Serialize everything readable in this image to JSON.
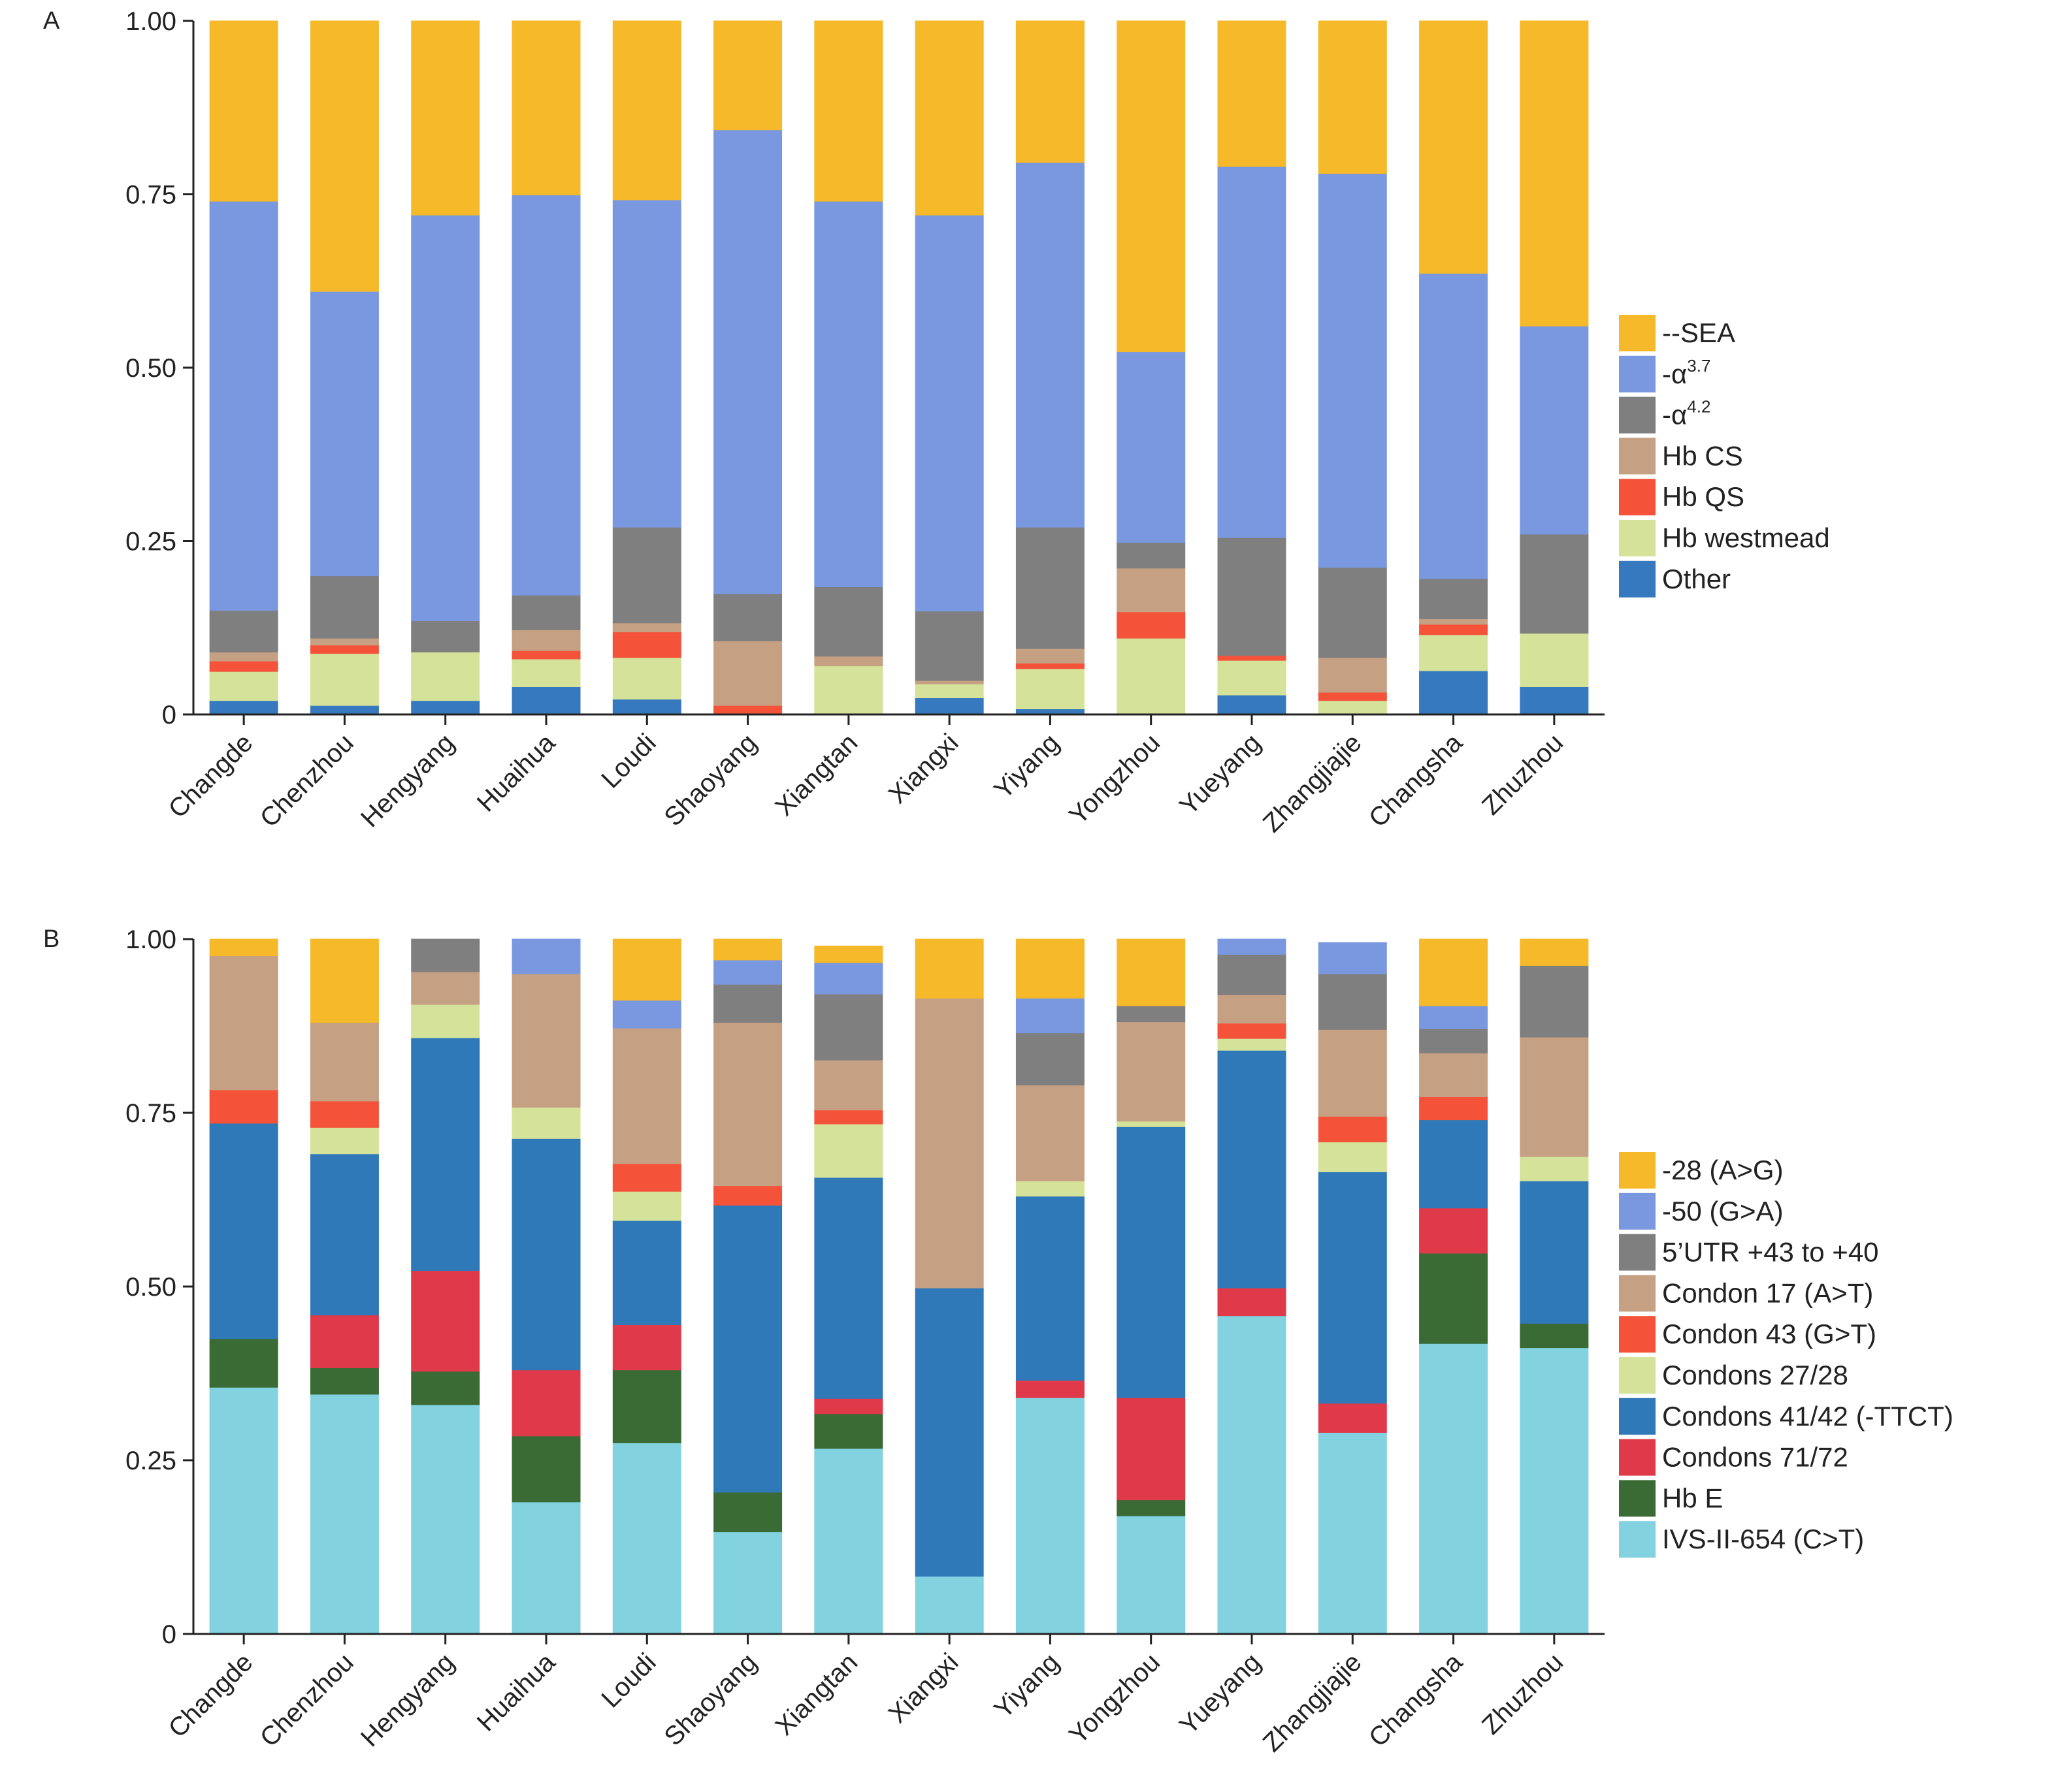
{
  "chart_data": [
    {
      "type": "bar",
      "stacked": true,
      "panel_label": "A",
      "categories": [
        "Changde",
        "Chenzhou",
        "Hengyang",
        "Huaihua",
        "Loudi",
        "Shaoyang",
        "Xiangtan",
        "Xiangxi",
        "Yiyang",
        "Yongzhou",
        "Yueyang",
        "Zhangjiajie",
        "Changsha",
        "Zhuzhou"
      ],
      "ylim": [
        0,
        1
      ],
      "yticks": [
        "0",
        "0.25",
        "0.50",
        "0.75",
        "1.00"
      ],
      "legend_position": "right",
      "series": [
        {
          "name": "Other",
          "color": "#3679be",
          "values": [
            0.02,
            0.013,
            0.02,
            0.04,
            0.022,
            0.0,
            0.0,
            0.024,
            0.008,
            0.0,
            0.028,
            0.0,
            0.063,
            0.04
          ]
        },
        {
          "name": "Hb westmead",
          "color": "#d4e29a",
          "values": [
            0.042,
            0.075,
            0.07,
            0.04,
            0.06,
            0.0,
            0.07,
            0.02,
            0.058,
            0.11,
            0.05,
            0.02,
            0.052,
            0.077
          ]
        },
        {
          "name": "Hb QS",
          "color": "#f4533a",
          "values": [
            0.015,
            0.012,
            0.0,
            0.012,
            0.037,
            0.013,
            0.0,
            0.0,
            0.008,
            0.038,
            0.007,
            0.012,
            0.015,
            0.0
          ]
        },
        {
          "name": "Hb CS",
          "color": "#c6a082",
          "values": [
            0.013,
            0.01,
            0.0,
            0.03,
            0.013,
            0.093,
            0.014,
            0.005,
            0.021,
            0.063,
            0.0,
            0.05,
            0.008,
            0.0
          ]
        },
        {
          "name": "-α4.2",
          "name_parts": [
            "-α",
            "4.2"
          ],
          "color": "#7f7f7f",
          "values": [
            0.06,
            0.09,
            0.045,
            0.05,
            0.138,
            0.068,
            0.1,
            0.1,
            0.175,
            0.037,
            0.17,
            0.13,
            0.058,
            0.143
          ]
        },
        {
          "name": "-α3.7",
          "name_parts": [
            "-α",
            "3.7"
          ],
          "color": "#7a98e0",
          "values": [
            0.59,
            0.41,
            0.585,
            0.577,
            0.472,
            0.669,
            0.556,
            0.571,
            0.526,
            0.275,
            0.535,
            0.568,
            0.44,
            0.3
          ]
        },
        {
          "name": "--SEA",
          "color": "#f5b929",
          "values": [
            0.26,
            0.39,
            0.28,
            0.251,
            0.258,
            0.157,
            0.26,
            0.28,
            0.204,
            0.477,
            0.21,
            0.22,
            0.364,
            0.44
          ]
        }
      ]
    },
    {
      "type": "bar",
      "stacked": true,
      "panel_label": "B",
      "categories": [
        "Changde",
        "Chenzhou",
        "Hengyang",
        "Huaihua",
        "Loudi",
        "Shaoyang",
        "Xiangtan",
        "Xiangxi",
        "Yiyang",
        "Yongzhou",
        "Yueyang",
        "Zhangjiajie",
        "Changsha",
        "Zhuzhou"
      ],
      "ylim": [
        0,
        1
      ],
      "yticks": [
        "0",
        "0.25",
        "0.50",
        "0.75",
        "1.00"
      ],
      "legend_position": "right",
      "series": [
        {
          "name": "IVS-II-654 (C>T)",
          "color": "#82d2e0",
          "values": [
            0.355,
            0.345,
            0.33,
            0.19,
            0.275,
            0.147,
            0.267,
            0.083,
            0.34,
            0.17,
            0.458,
            0.29,
            0.418,
            0.412
          ]
        },
        {
          "name": "Hb E",
          "color": "#3a6b34",
          "values": [
            0.07,
            0.038,
            0.048,
            0.095,
            0.105,
            0.057,
            0.05,
            0.0,
            0.0,
            0.023,
            0.0,
            0.0,
            0.13,
            0.035
          ]
        },
        {
          "name": "Condons 71/72",
          "color": "#e03a4a",
          "values": [
            0.0,
            0.076,
            0.145,
            0.095,
            0.065,
            0.0,
            0.022,
            0.0,
            0.025,
            0.147,
            0.04,
            0.042,
            0.065,
            0.0
          ]
        },
        {
          "name": "Condons 41/42 (-TTCT)",
          "color": "#2f79b8",
          "values": [
            0.31,
            0.232,
            0.335,
            0.333,
            0.15,
            0.413,
            0.318,
            0.415,
            0.265,
            0.39,
            0.342,
            0.333,
            0.127,
            0.205
          ]
        },
        {
          "name": "Condons 27/28",
          "color": "#d4e29a",
          "values": [
            0.0,
            0.038,
            0.048,
            0.045,
            0.042,
            0.0,
            0.077,
            0.0,
            0.022,
            0.008,
            0.017,
            0.043,
            0.0,
            0.035
          ]
        },
        {
          "name": "Condon 43 (G>T)",
          "color": "#f4533a",
          "values": [
            0.048,
            0.038,
            0.0,
            0.0,
            0.04,
            0.028,
            0.02,
            0.0,
            0.0,
            0.0,
            0.022,
            0.037,
            0.033,
            0.0
          ]
        },
        {
          "name": "Condon 17 (A>T)",
          "color": "#c6a082",
          "values": [
            0.193,
            0.113,
            0.047,
            0.192,
            0.195,
            0.235,
            0.072,
            0.417,
            0.138,
            0.143,
            0.041,
            0.125,
            0.063,
            0.172
          ]
        },
        {
          "name": "5’UTR +43 to +40",
          "color": "#7f7f7f",
          "values": [
            0.0,
            0.0,
            0.047,
            0.0,
            0.0,
            0.055,
            0.095,
            0.0,
            0.075,
            0.023,
            0.058,
            0.08,
            0.035,
            0.103
          ]
        },
        {
          "name": "-50 (G>A)",
          "color": "#7a98e0",
          "values": [
            0.0,
            0.0,
            0.0,
            0.05,
            0.04,
            0.035,
            0.045,
            0.0,
            0.05,
            0.0,
            0.022,
            0.045,
            0.033,
            0.0
          ]
        },
        {
          "name": "-28 (A>G)",
          "color": "#f5b929",
          "values": [
            0.024,
            0.12,
            0.0,
            0.0,
            0.088,
            0.03,
            0.024,
            0.085,
            0.085,
            0.096,
            0.0,
            0.0,
            0.096,
            0.038
          ]
        }
      ]
    }
  ]
}
